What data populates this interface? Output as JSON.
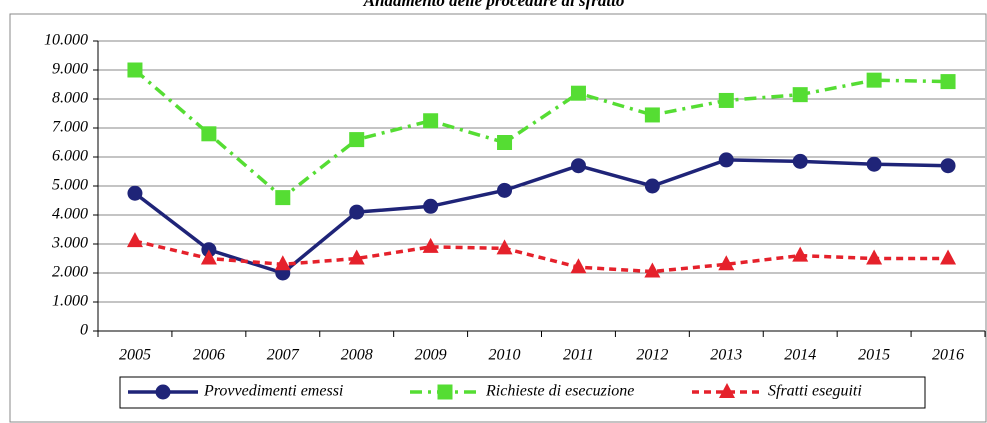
{
  "chart_data": {
    "type": "line",
    "title": "Andamento delle procedure di sfratto",
    "categories": [
      "2005",
      "2006",
      "2007",
      "2008",
      "2009",
      "2010",
      "2011",
      "2012",
      "2013",
      "2014",
      "2015",
      "2016"
    ],
    "series": [
      {
        "name": "Provvedimenti emessi",
        "color": "#1f2478",
        "marker": "circle",
        "dash": "solid",
        "values": [
          4750,
          2800,
          2000,
          4100,
          4300,
          4850,
          5700,
          5000,
          5900,
          5850,
          5750,
          5700
        ]
      },
      {
        "name": "Richieste di esecuzione",
        "color": "#55dd33",
        "marker": "square",
        "dash": "dashdot",
        "values": [
          9000,
          6800,
          4600,
          6600,
          7250,
          6500,
          8200,
          7450,
          7950,
          8150,
          8650,
          8600
        ]
      },
      {
        "name": "Sfratti eseguiti",
        "color": "#e5212b",
        "marker": "triangle",
        "dash": "dashed",
        "values": [
          3100,
          2500,
          2300,
          2500,
          2900,
          2850,
          2200,
          2050,
          2300,
          2600,
          2500,
          2500
        ]
      }
    ],
    "ylim": [
      0,
      10000
    ],
    "yticks": [
      0,
      {
        "value": 1000,
        "label": "1.000"
      },
      {
        "value": 2000,
        "label": "2.000"
      },
      {
        "value": 3000,
        "label": "3.000"
      },
      {
        "value": 4000,
        "label": "4.000"
      },
      {
        "value": 5000,
        "label": "5.000"
      },
      {
        "value": 6000,
        "label": "6.000"
      },
      {
        "value": 7000,
        "label": "7.000"
      },
      {
        "value": 8000,
        "label": "8.000"
      },
      {
        "value": 9000,
        "label": "9.000"
      },
      {
        "value": 10000,
        "label": "10.000"
      }
    ],
    "grid": true,
    "legend": "bottom"
  }
}
